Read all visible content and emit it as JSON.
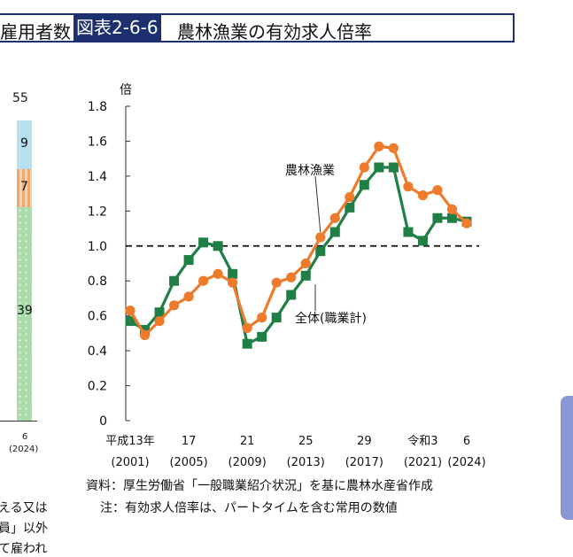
{
  "header": {
    "prev_title": "雇用者数",
    "figure_no": "図表2-6-6",
    "title": "農林漁業の有効求人倍率"
  },
  "left_panel": {
    "total_label": "55",
    "segments": [
      {
        "label": "9",
        "color": "#b9e0ee"
      },
      {
        "label": "7",
        "color": "#f2a86b"
      },
      {
        "label": "39",
        "color": "#a9dca9"
      }
    ],
    "x_label_1": "6",
    "x_label_2": "(2024)",
    "text_lines": [
      "える又は",
      "員」以外",
      "て雇われ"
    ]
  },
  "chart_data": {
    "type": "line",
    "ylabel": "倍",
    "ylim": [
      0,
      1.8
    ],
    "yticks": [
      "0",
      "0.2",
      "0.4",
      "0.6",
      "0.8",
      "1.0",
      "1.2",
      "1.4",
      "1.6",
      "1.8"
    ],
    "x": [
      2001,
      2002,
      2003,
      2004,
      2005,
      2006,
      2007,
      2008,
      2009,
      2010,
      2011,
      2012,
      2013,
      2014,
      2015,
      2016,
      2017,
      2018,
      2019,
      2020,
      2021,
      2022,
      2023,
      2024
    ],
    "xtick_labels": [
      {
        "year": 2001,
        "era": "平成13年",
        "ad": "(2001)"
      },
      {
        "year": 2005,
        "era": "17",
        "ad": "(2005)"
      },
      {
        "year": 2009,
        "era": "21",
        "ad": "(2009)"
      },
      {
        "year": 2013,
        "era": "25",
        "ad": "(2013)"
      },
      {
        "year": 2017,
        "era": "29",
        "ad": "(2017)"
      },
      {
        "year": 2021,
        "era": "令和3",
        "ad": "(2021)"
      },
      {
        "year": 2024,
        "era": "6",
        "ad": "(2024)"
      }
    ],
    "reference_line": 1.0,
    "series": [
      {
        "name": "農林漁業",
        "color": "#ee7a2c",
        "marker": "circle",
        "values": [
          0.63,
          0.49,
          0.57,
          0.66,
          0.71,
          0.8,
          0.84,
          0.79,
          0.53,
          0.59,
          0.79,
          0.82,
          0.9,
          1.05,
          1.16,
          1.28,
          1.45,
          1.57,
          1.56,
          1.34,
          1.29,
          1.32,
          1.21,
          1.13
        ]
      },
      {
        "name": "全体(職業計)",
        "color": "#1f7f45",
        "marker": "square",
        "values": [
          0.57,
          0.52,
          0.62,
          0.8,
          0.92,
          1.02,
          1.0,
          0.84,
          0.44,
          0.48,
          0.59,
          0.72,
          0.83,
          0.97,
          1.08,
          1.22,
          1.35,
          1.45,
          1.45,
          1.08,
          1.03,
          1.16,
          1.16,
          1.14
        ]
      }
    ]
  },
  "footnotes": {
    "source": "資料：厚生労働省「一般職業紹介状況」を基に農林水産省作成",
    "note": "注：有効求人倍率は、パートタイムを含む常用の数値"
  }
}
